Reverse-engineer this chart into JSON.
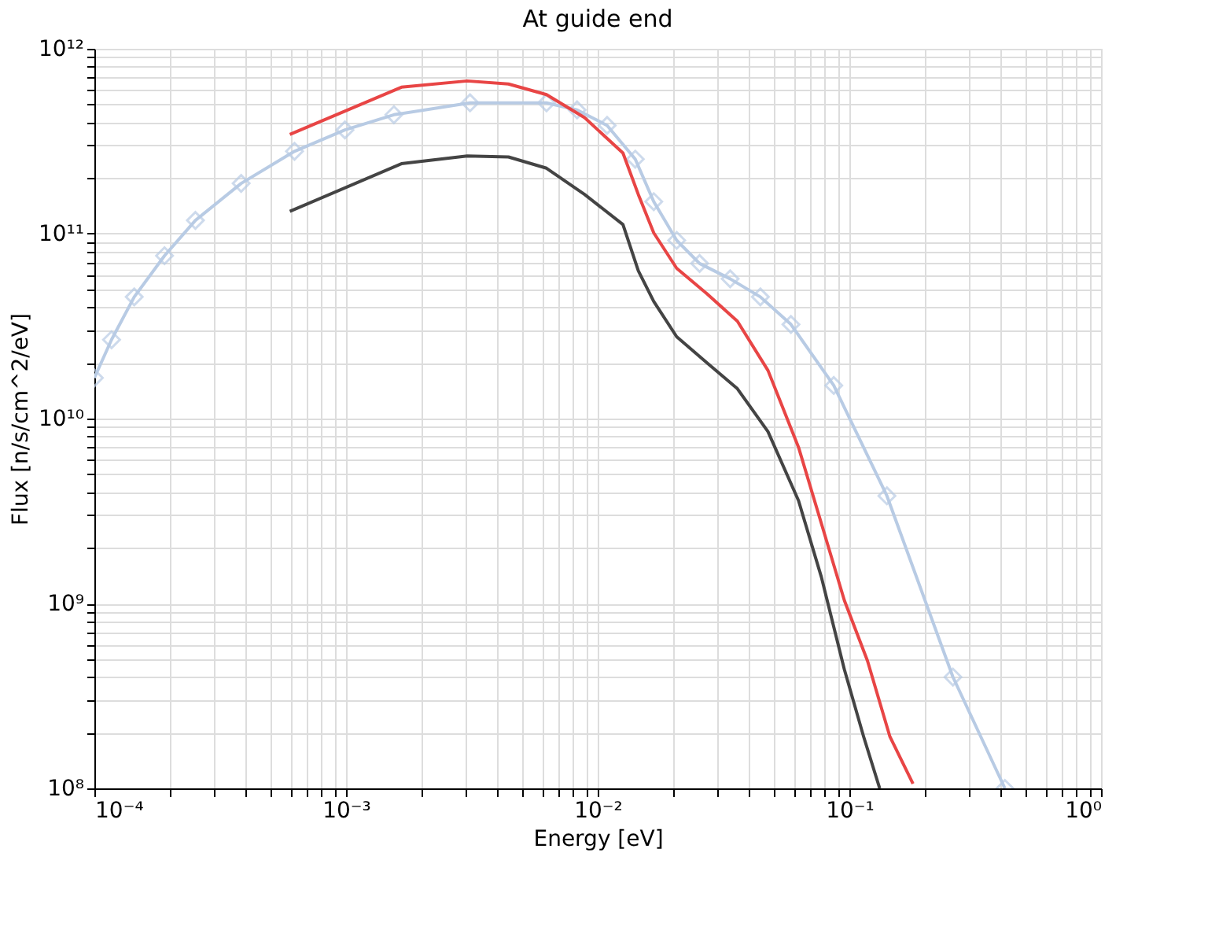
{
  "chart_data": {
    "type": "line",
    "title": "At guide end",
    "xlabel": "Energy [eV]",
    "ylabel": "Flux [n/s/cm^2/eV]",
    "log": "xy",
    "grid": true,
    "legend": false,
    "xlim": [
      0.0001,
      1
    ],
    "ylim": [
      100000000,
      1000000000000
    ],
    "xticks": [
      {
        "value": 0.0001,
        "label": "10⁻⁴"
      },
      {
        "value": 0.0002,
        "label": null
      },
      {
        "value": 0.0003,
        "label": null
      },
      {
        "value": 0.0004,
        "label": null
      },
      {
        "value": 0.0005,
        "label": null
      },
      {
        "value": 0.0006,
        "label": null
      },
      {
        "value": 0.0007,
        "label": null
      },
      {
        "value": 0.0008,
        "label": null
      },
      {
        "value": 0.0009,
        "label": null
      },
      {
        "value": 0.001,
        "label": "10⁻³"
      },
      {
        "value": 0.002,
        "label": null
      },
      {
        "value": 0.003,
        "label": null
      },
      {
        "value": 0.004,
        "label": null
      },
      {
        "value": 0.005,
        "label": null
      },
      {
        "value": 0.006,
        "label": null
      },
      {
        "value": 0.007,
        "label": null
      },
      {
        "value": 0.008,
        "label": null
      },
      {
        "value": 0.009,
        "label": null
      },
      {
        "value": 0.01,
        "label": "10⁻²"
      },
      {
        "value": 0.02,
        "label": null
      },
      {
        "value": 0.03,
        "label": null
      },
      {
        "value": 0.04,
        "label": null
      },
      {
        "value": 0.05,
        "label": null
      },
      {
        "value": 0.06,
        "label": null
      },
      {
        "value": 0.07,
        "label": null
      },
      {
        "value": 0.08,
        "label": null
      },
      {
        "value": 0.09,
        "label": null
      },
      {
        "value": 0.1,
        "label": "10⁻¹"
      },
      {
        "value": 0.2,
        "label": null
      },
      {
        "value": 0.3,
        "label": null
      },
      {
        "value": 0.4,
        "label": null
      },
      {
        "value": 0.5,
        "label": null
      },
      {
        "value": 0.6,
        "label": null
      },
      {
        "value": 0.7,
        "label": null
      },
      {
        "value": 0.8,
        "label": null
      },
      {
        "value": 0.9,
        "label": null
      },
      {
        "value": 1,
        "label": "10⁰"
      }
    ],
    "yticks": [
      {
        "value": 100000000,
        "label": "10⁸"
      },
      {
        "value": 200000000,
        "label": null
      },
      {
        "value": 300000000,
        "label": null
      },
      {
        "value": 400000000,
        "label": null
      },
      {
        "value": 500000000,
        "label": null
      },
      {
        "value": 600000000,
        "label": null
      },
      {
        "value": 700000000,
        "label": null
      },
      {
        "value": 800000000,
        "label": null
      },
      {
        "value": 900000000,
        "label": null
      },
      {
        "value": 1000000000,
        "label": "10⁹"
      },
      {
        "value": 2000000000,
        "label": null
      },
      {
        "value": 3000000000,
        "label": null
      },
      {
        "value": 4000000000,
        "label": null
      },
      {
        "value": 5000000000,
        "label": null
      },
      {
        "value": 6000000000,
        "label": null
      },
      {
        "value": 7000000000,
        "label": null
      },
      {
        "value": 8000000000,
        "label": null
      },
      {
        "value": 9000000000,
        "label": null
      },
      {
        "value": 10000000000,
        "label": "10¹⁰"
      },
      {
        "value": 20000000000,
        "label": null
      },
      {
        "value": 30000000000,
        "label": null
      },
      {
        "value": 40000000000,
        "label": null
      },
      {
        "value": 50000000000,
        "label": null
      },
      {
        "value": 60000000000,
        "label": null
      },
      {
        "value": 70000000000,
        "label": null
      },
      {
        "value": 80000000000,
        "label": null
      },
      {
        "value": 90000000000,
        "label": null
      },
      {
        "value": 100000000000,
        "label": "10¹¹"
      },
      {
        "value": 200000000000,
        "label": null
      },
      {
        "value": 300000000000,
        "label": null
      },
      {
        "value": 400000000000,
        "label": null
      },
      {
        "value": 500000000000,
        "label": null
      },
      {
        "value": 600000000000,
        "label": null
      },
      {
        "value": 700000000000,
        "label": null
      },
      {
        "value": 800000000000,
        "label": null
      },
      {
        "value": 900000000000,
        "label": null
      },
      {
        "value": 1000000000000,
        "label": "10¹²"
      }
    ],
    "series": [
      {
        "color": "#b8cbe4",
        "marker": "diamond",
        "x": [
          0.0001,
          0.000117,
          0.000144,
          0.00019,
          0.000252,
          0.000383,
          0.000624,
          0.00099,
          0.00155,
          0.00311,
          0.00626,
          0.00828,
          0.0109,
          0.0141,
          0.0167,
          0.0206,
          0.0254,
          0.0336,
          0.0443,
          0.0586,
          0.0867,
          0.141,
          0.258,
          0.415
        ],
        "values": [
          16600000000,
          26700000000,
          45500000000,
          76000000000,
          118000000000,
          187000000000,
          279000000000,
          364000000000,
          440000000000,
          510000000000,
          510000000000,
          467000000000,
          385000000000,
          253000000000,
          149000000000,
          92000000000,
          69000000000,
          57000000000,
          45500000000,
          32300000000,
          15100000000,
          3820000000,
          400000000,
          100000000
        ]
      },
      {
        "color": "#e84545",
        "marker": "none",
        "x": [
          0.000598,
          0.00166,
          0.00303,
          0.00442,
          0.00626,
          0.00887,
          0.0126,
          0.0145,
          0.0167,
          0.0206,
          0.0272,
          0.0359,
          0.0475,
          0.0628,
          0.0774,
          0.0955,
          0.118,
          0.145,
          0.179
        ],
        "values": [
          344000000000,
          620000000000,
          670000000000,
          645000000000,
          565000000000,
          424000000000,
          273000000000,
          163000000000,
          101000000000,
          65000000000,
          47300000000,
          33600000000,
          18200000000,
          7000000000,
          2710000000,
          1040000000,
          490000000,
          190000000,
          106000000
        ]
      },
      {
        "color": "#444444",
        "marker": "none",
        "x": [
          0.000598,
          0.00166,
          0.00303,
          0.00442,
          0.00626,
          0.00887,
          0.0126,
          0.0145,
          0.0167,
          0.0206,
          0.0272,
          0.0359,
          0.0475,
          0.0628,
          0.0774,
          0.0955,
          0.114,
          0.132
        ],
        "values": [
          132000000000,
          239000000000,
          263000000000,
          260000000000,
          226000000000,
          163000000000,
          112000000000,
          63000000000,
          43000000000,
          27700000000,
          20000000000,
          14500000000,
          8500000000,
          3600000000,
          1390000000,
          440000000,
          190000000,
          100000000
        ]
      }
    ]
  }
}
